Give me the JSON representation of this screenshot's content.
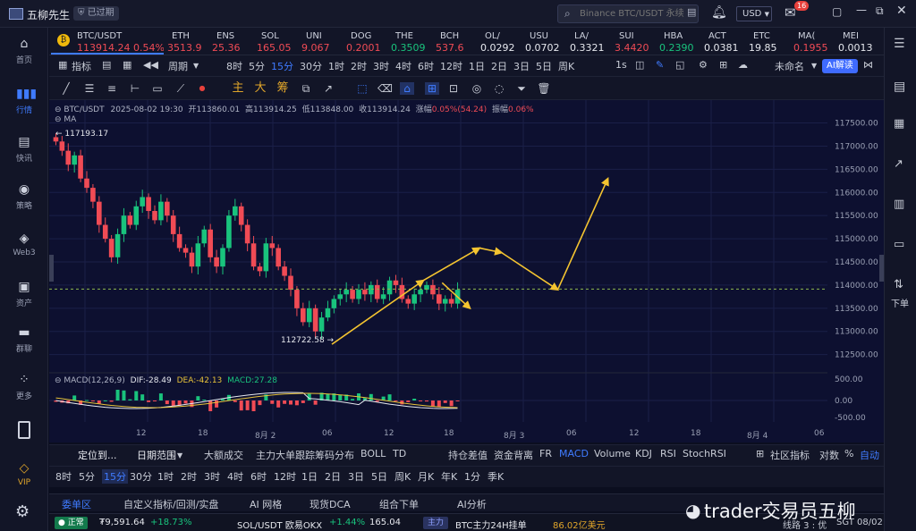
{
  "app": {
    "name": "五柳先生",
    "expired_badge": "已过期"
  },
  "search": {
    "placeholder": "Binance BTC/USDT 永续"
  },
  "topbar": {
    "currency": "USD",
    "mail_count": "16"
  },
  "leftnav": [
    {
      "label": "首页",
      "icon": "home-icon"
    },
    {
      "label": "行情",
      "icon": "chart-bars-icon"
    },
    {
      "label": "快讯",
      "icon": "news-icon"
    },
    {
      "label": "策略",
      "icon": "robot-icon"
    },
    {
      "label": "Web3",
      "icon": "web3-icon"
    },
    {
      "label": "资产",
      "icon": "wallet-icon"
    },
    {
      "label": "群聊",
      "icon": "chat-icon"
    },
    {
      "label": "更多",
      "icon": "grid-icon"
    },
    {
      "label": "VIP",
      "icon": "vip-icon"
    }
  ],
  "rightnav": {
    "down_label": "下单"
  },
  "tickers": [
    {
      "name": "BTC/USDT",
      "price": "113914.24",
      "change": "0.54%",
      "color": "red"
    },
    {
      "name": "ETH",
      "price": "3513.9",
      "color": "red"
    },
    {
      "name": "ENS",
      "price": "25.36",
      "color": "red"
    },
    {
      "name": "SOL",
      "price": "165.05",
      "color": "red"
    },
    {
      "name": "UNI",
      "price": "9.067",
      "color": "red"
    },
    {
      "name": "DOG",
      "price": "0.2001",
      "color": "red"
    },
    {
      "name": "THE",
      "price": "0.3509",
      "color": "green"
    },
    {
      "name": "BCH",
      "price": "537.6",
      "color": "red"
    },
    {
      "name": "OL/",
      "price": "0.0292",
      "color": "white"
    },
    {
      "name": "USU",
      "price": "0.0702",
      "color": "white"
    },
    {
      "name": "LA/",
      "price": "0.3321",
      "color": "white"
    },
    {
      "name": "SUI",
      "price": "3.4420",
      "color": "red"
    },
    {
      "name": "HBA",
      "price": "0.2390",
      "color": "green"
    },
    {
      "name": "ACT",
      "price": "0.0381",
      "color": "white"
    },
    {
      "name": "ETC",
      "price": "19.85",
      "color": "white"
    },
    {
      "name": "MA(",
      "price": "0.1955",
      "color": "red"
    },
    {
      "name": "MEI",
      "price": "0.0013",
      "color": "white"
    }
  ],
  "toolbar1": {
    "indicator": "指标",
    "period": "周期",
    "intervals": [
      "8时",
      "5分",
      "15分",
      "30分",
      "1时",
      "2时",
      "3时",
      "4时",
      "6时",
      "12时",
      "1日",
      "2日",
      "3日",
      "5日",
      "周K"
    ],
    "selected_interval": "15分",
    "one_s": "1s",
    "unnamed": "未命名",
    "ai": "AI解读"
  },
  "toolbar2": {
    "zhu": "主",
    "da": "大",
    "chou": "筹"
  },
  "chart_info": {
    "symbol": "BTC/USDT",
    "datetime": "2025-08-02 19:30",
    "open_label": "开",
    "open": "113860.01",
    "high_label": "高",
    "high": "113914.25",
    "low_label": "低",
    "low": "113848.00",
    "close_label": "收",
    "close": "113914.24",
    "chg_label": "涨幅",
    "chg": "0.05%(54.24)",
    "amp_label": "振幅",
    "amp": "0.06%",
    "ma_label": "MA",
    "high_marker": "117193.17",
    "low_marker": "112722.58",
    "macd_params": "MACD(12,26,9)",
    "dif": "DIF:-28.49",
    "dea": "DEA:-42.13",
    "macd": "MACD:27.28"
  },
  "chart_data": {
    "type": "candlestick",
    "price_axis": [
      "117500.00",
      "117000.00",
      "116500.00",
      "116000.00",
      "115500.00",
      "115000.00",
      "114500.00",
      "114000.00",
      "113500.00",
      "113000.00",
      "112500.00"
    ],
    "ylim": [
      112300,
      117800
    ],
    "macd_axis": [
      "500.00",
      "0.00",
      "-500.00"
    ],
    "time_axis": [
      "12",
      "18",
      "8月 2",
      "06",
      "12",
      "18",
      "8月 3",
      "06",
      "12",
      "18",
      "8月 4",
      "06"
    ],
    "current_price": 113914.24,
    "closes": [
      117100,
      116900,
      116600,
      116800,
      116300,
      116100,
      115800,
      115300,
      115000,
      114600,
      115100,
      115500,
      115300,
      115700,
      115900,
      115600,
      115400,
      115800,
      115500,
      115100,
      114800,
      114700,
      114400,
      114900,
      115200,
      114600,
      114400,
      114800,
      115500,
      115700,
      115300,
      114900,
      114400,
      114300,
      114900,
      114800,
      114400,
      114200,
      113900,
      113500,
      113200,
      113500,
      113000,
      113300,
      113500,
      113700,
      113800,
      113900,
      113700,
      113900,
      113800,
      114000,
      113700,
      113800,
      114100,
      114000,
      113700,
      113600,
      113800,
      113900,
      114000,
      113800,
      113600,
      113700,
      113600,
      113900
    ],
    "projection": [
      [
        112722,
        0
      ],
      [
        114100,
        62
      ],
      [
        114800,
        100
      ],
      [
        114700,
        115
      ],
      [
        113900,
        153
      ],
      [
        116300,
        187
      ]
    ],
    "annotations": [
      {
        "from_candle": 63,
        "from_price": 114050,
        "to_candle": 75,
        "to_price": 113500
      }
    ]
  },
  "axisbar": {
    "locate": "定位到...",
    "range": "日期范围",
    "items": [
      "大额成交",
      "主力大单跟踪",
      "筹码分布",
      "BOLL",
      "TD",
      "持仓差值",
      "资金背离",
      "FR",
      "MACD",
      "Volume",
      "KDJ",
      "RSI",
      "StochRSI"
    ],
    "selected": "MACD",
    "community": "社区指标",
    "log": "对数",
    "pct": "%",
    "auto": "自动"
  },
  "tfbar": [
    "8时",
    "5分",
    "15分",
    "30分",
    "1时",
    "2时",
    "3时",
    "4时",
    "6时",
    "12时",
    "1日",
    "2日",
    "3日",
    "5日",
    "周K",
    "月K",
    "年K",
    "1分",
    "季K"
  ],
  "tfbar_selected": "15分",
  "bottom_tabs": [
    "委单区",
    "自定义指标/回测/实盘",
    "AI 网格",
    "现货DCA",
    "组合下单",
    "AI分析"
  ],
  "status": {
    "state": "正常",
    "balance": "₮9,591.64",
    "balance_chg": "+18.73%",
    "pair": "SOL/USDT 欧易OKX",
    "pair_chg": "+1.44%",
    "pair_price": "165.04",
    "main_tag": "主力",
    "main_text": "BTC主力24H挂单",
    "main_value": "86.02亿美元",
    "line": "线路 3 : 优",
    "tz": "SGT 08/02"
  },
  "watermark": "trader交易员五柳"
}
